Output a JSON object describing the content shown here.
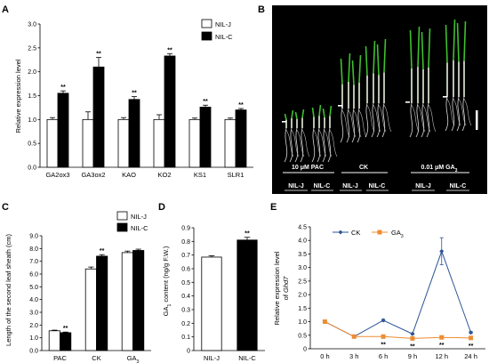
{
  "panels": {
    "A": "A",
    "B": "B",
    "C": "C",
    "D": "D",
    "E": "E"
  },
  "photo_labels": {
    "pac": "10 μM PAC",
    "ck": "CK",
    "ga3_prefix": "0.01 μM GA",
    "ga3_sub": "3",
    "nilj_1": "NIL-J",
    "nilc_1": "NIL-C",
    "nilj_2": "NIL-J",
    "nilc_2": "NIL-C",
    "nilj_3": "NIL-J",
    "nilc_3": "NIL-C"
  },
  "colors": {
    "nil_j": "#ffffff",
    "nil_c": "#000000",
    "ck": "#2e5597",
    "ga3": "#ed8c32",
    "photo_bg": "#000000",
    "seedling_leaf": "#3fbf2f"
  },
  "chart_data": [
    {
      "panel": "A",
      "type": "bar",
      "categories": [
        "GA2ox3",
        "GA3ox2",
        "KAO",
        "KO2",
        "KS1",
        "SLR1"
      ],
      "series": [
        {
          "name": "NIL-J",
          "values": [
            1.0,
            1.0,
            1.0,
            1.0,
            1.0,
            1.0
          ],
          "errors": [
            0.04,
            0.16,
            0.04,
            0.1,
            0.03,
            0.03
          ]
        },
        {
          "name": "NIL-C",
          "values": [
            1.55,
            2.1,
            1.42,
            2.33,
            1.26,
            1.2
          ],
          "errors": [
            0.05,
            0.2,
            0.06,
            0.05,
            0.04,
            0.03
          ]
        }
      ],
      "significance": [
        "**",
        "**",
        "**",
        "**",
        "**",
        "**"
      ],
      "ylabel": "Relative expression level",
      "ylim": [
        0,
        3.0
      ],
      "yticks": [
        "0.0",
        "0.5",
        "1.0",
        "1.5",
        "2.0",
        "2.5",
        "3.0"
      ],
      "legend": "top-right"
    },
    {
      "panel": "C",
      "type": "bar",
      "categories": [
        "PAC",
        "CK",
        "GA3"
      ],
      "category_subscripts": [
        "",
        "",
        "3"
      ],
      "series": [
        {
          "name": "NIL-J",
          "values": [
            1.55,
            6.4,
            7.68
          ],
          "errors": [
            0.05,
            0.15,
            0.12
          ]
        },
        {
          "name": "NIL-C",
          "values": [
            1.4,
            7.4,
            7.85
          ],
          "errors": [
            0.05,
            0.12,
            0.1
          ]
        }
      ],
      "significance": [
        "**",
        "**",
        ""
      ],
      "ylabel": "Length of the second leaf sheath (cm)",
      "ylim": [
        0,
        9.0
      ],
      "yticks": [
        "0.0",
        "1.0",
        "2.0",
        "3.0",
        "4.0",
        "5.0",
        "6.0",
        "7.0",
        "8.0",
        "9.0"
      ],
      "legend": "top-left"
    },
    {
      "panel": "D",
      "type": "bar",
      "categories": [
        "NIL-J",
        "NIL-C"
      ],
      "values": [
        0.685,
        0.81
      ],
      "errors": [
        0.01,
        0.02
      ],
      "significance": [
        "",
        "**"
      ],
      "ylabel": "GA content (ng/g F.W.)",
      "ylabel_parts": [
        "GA",
        "1",
        " content (ng/g F.W.)"
      ],
      "ylim": [
        0,
        0.9
      ],
      "yticks": [
        "0",
        "0.1",
        "0.2",
        "0.3",
        "0.4",
        "0.5",
        "0.6",
        "0.7",
        "0.8",
        "0.9"
      ]
    },
    {
      "panel": "E",
      "type": "line",
      "x": [
        "0 h",
        "3 h",
        "6 h",
        "9 h",
        "12 h",
        "24 h"
      ],
      "series": [
        {
          "name": "CK",
          "values": [
            1.0,
            0.45,
            1.05,
            0.55,
            3.6,
            0.6
          ],
          "errors": [
            0.03,
            0.03,
            0.04,
            0.03,
            0.5,
            0.04
          ]
        },
        {
          "name": "GA3",
          "values": [
            1.0,
            0.45,
            0.45,
            0.38,
            0.42,
            0.4
          ],
          "errors": [
            0.03,
            0.03,
            0.03,
            0.03,
            0.03,
            0.03
          ]
        }
      ],
      "significance": [
        "",
        "",
        "**",
        "**",
        "**",
        "**"
      ],
      "ylabel": "Relative expression level of Ghd7",
      "ylabel_line1": "Relative expression level",
      "ylabel_line2_prefix": "of ",
      "ylabel_line2_italic": "Ghd7",
      "ylim": [
        0,
        4.5
      ],
      "yticks": [
        "0",
        "0.5",
        "1.0",
        "1.5",
        "2.0",
        "2.5",
        "3.0",
        "3.5",
        "4.0",
        "4.5"
      ],
      "legend": "top-left"
    }
  ]
}
